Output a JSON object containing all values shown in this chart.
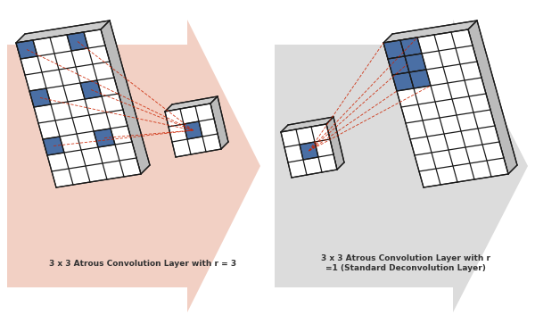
{
  "fig_width": 6.0,
  "fig_height": 3.72,
  "bg_color": "#ffffff",
  "arrow1_color": "#f2d0c4",
  "arrow2_color": "#dcdcdc",
  "grid_edge_color": "#1a1a1a",
  "blue_color": "#4a6fa5",
  "red_line_color": "#cc2200",
  "label1": "3 x 3 Atrous Convolution Layer with r = 3",
  "label2": "3 x 3 Atrous Convolution Layer with r\n=1 (Standard Deconvolution Layer)",
  "label_fontsize": 6.5
}
